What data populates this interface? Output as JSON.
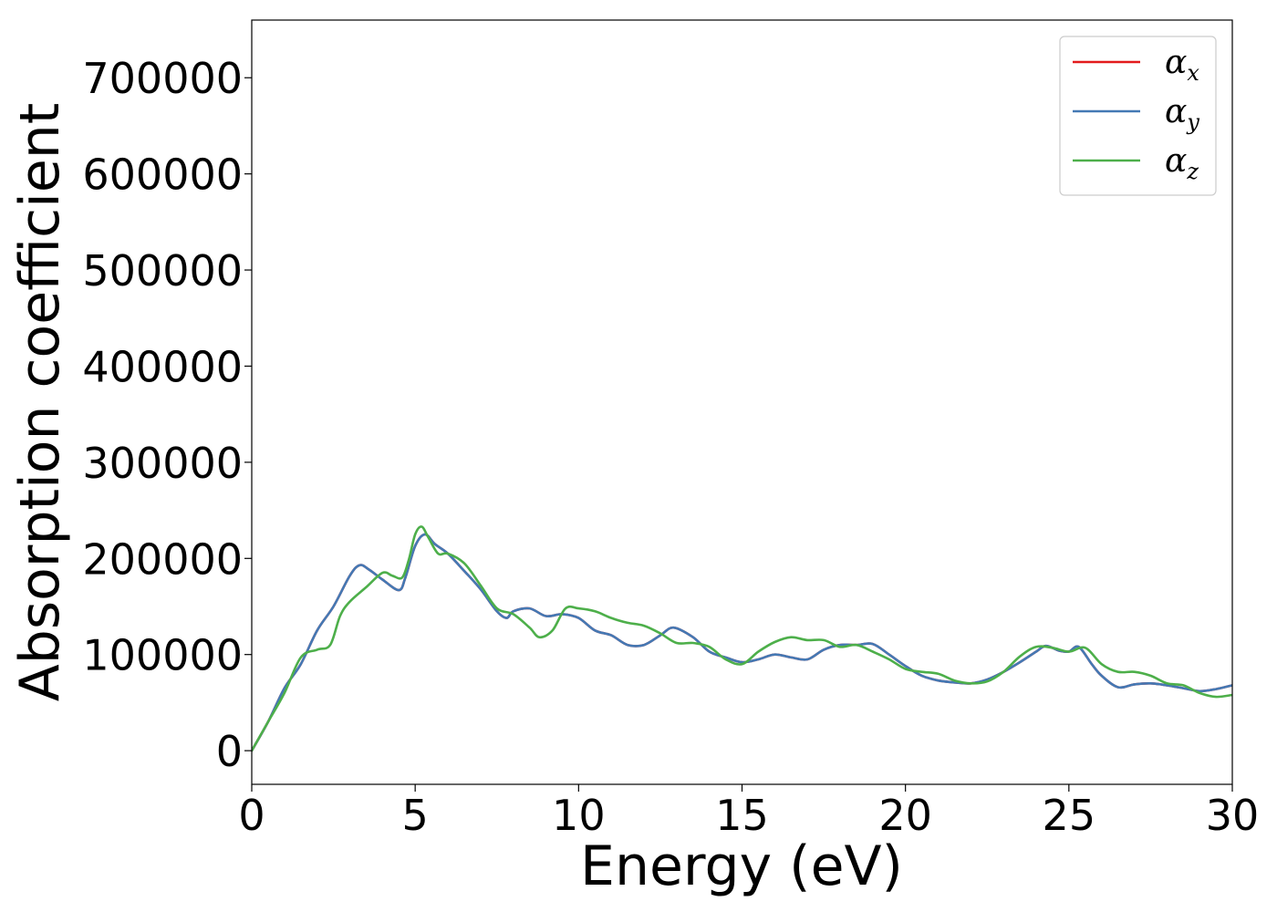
{
  "chart_data": {
    "type": "line",
    "xlabel": "Energy (eV)",
    "ylabel": "Absorption coefficient",
    "xlim": [
      0,
      30
    ],
    "ylim": [
      -35000,
      760000
    ],
    "xticks": [
      0,
      5,
      10,
      15,
      20,
      25,
      30
    ],
    "xtick_labels": [
      "0",
      "5",
      "10",
      "15",
      "20",
      "25",
      "30"
    ],
    "yticks": [
      0,
      100000,
      200000,
      300000,
      400000,
      500000,
      600000,
      700000
    ],
    "ytick_labels": [
      "0",
      "100000",
      "200000",
      "300000",
      "400000",
      "500000",
      "600000",
      "700000"
    ],
    "grid": false,
    "legend": {
      "position": "top-right",
      "entries": [
        {
          "symbol": "α",
          "subscript": "x"
        },
        {
          "symbol": "α",
          "subscript": "y"
        },
        {
          "symbol": "α",
          "subscript": "z"
        }
      ]
    },
    "series": [
      {
        "name": "α_x",
        "color": "#e31a1c",
        "x": [
          0,
          0.5,
          1.0,
          1.5,
          2.0,
          2.5,
          3.0,
          3.3,
          3.6,
          4.0,
          4.5,
          4.7,
          5.0,
          5.3,
          5.6,
          6.0,
          6.5,
          7.0,
          7.5,
          7.8,
          8.0,
          8.5,
          9.0,
          9.5,
          10.0,
          10.5,
          11.0,
          11.5,
          12.0,
          12.5,
          12.9,
          13.5,
          14.0,
          14.5,
          15.0,
          15.5,
          16.0,
          16.5,
          17.0,
          17.5,
          18.0,
          18.5,
          19.0,
          19.5,
          20.0,
          20.5,
          21.0,
          21.5,
          22.0,
          22.5,
          23.0,
          23.5,
          24.0,
          24.3,
          24.7,
          25.0,
          25.3,
          25.7,
          26.0,
          26.5,
          27.0,
          27.5,
          28.0,
          28.5,
          29.0,
          29.5,
          30.0
        ],
        "y": [
          0,
          30000,
          65000,
          90000,
          125000,
          150000,
          182000,
          193000,
          188000,
          178000,
          167000,
          180000,
          213000,
          225000,
          215000,
          205000,
          187000,
          168000,
          145000,
          138000,
          145000,
          148000,
          140000,
          142000,
          138000,
          125000,
          120000,
          110000,
          110000,
          120000,
          128000,
          118000,
          103000,
          97000,
          92000,
          95000,
          100000,
          97000,
          95000,
          105000,
          110000,
          110000,
          111000,
          100000,
          88000,
          78000,
          73000,
          71000,
          70000,
          74000,
          82000,
          92000,
          103000,
          109000,
          104000,
          103000,
          108000,
          90000,
          78000,
          66000,
          69000,
          70000,
          68000,
          65000,
          62000,
          64000,
          68000
        ]
      },
      {
        "name": "α_y",
        "color": "#4479b4",
        "x": [
          0,
          0.5,
          1.0,
          1.5,
          2.0,
          2.5,
          3.0,
          3.3,
          3.6,
          4.0,
          4.5,
          4.7,
          5.0,
          5.3,
          5.6,
          6.0,
          6.5,
          7.0,
          7.5,
          7.8,
          8.0,
          8.5,
          9.0,
          9.5,
          10.0,
          10.5,
          11.0,
          11.5,
          12.0,
          12.5,
          12.9,
          13.5,
          14.0,
          14.5,
          15.0,
          15.5,
          16.0,
          16.5,
          17.0,
          17.5,
          18.0,
          18.5,
          19.0,
          19.5,
          20.0,
          20.5,
          21.0,
          21.5,
          22.0,
          22.5,
          23.0,
          23.5,
          24.0,
          24.3,
          24.7,
          25.0,
          25.3,
          25.7,
          26.0,
          26.5,
          27.0,
          27.5,
          28.0,
          28.5,
          29.0,
          29.5,
          30.0
        ],
        "y": [
          0,
          30000,
          65000,
          90000,
          125000,
          150000,
          182000,
          193000,
          188000,
          178000,
          167000,
          180000,
          213000,
          225000,
          215000,
          205000,
          187000,
          168000,
          145000,
          138000,
          145000,
          148000,
          140000,
          142000,
          138000,
          125000,
          120000,
          110000,
          110000,
          120000,
          128000,
          118000,
          103000,
          97000,
          92000,
          95000,
          100000,
          97000,
          95000,
          105000,
          110000,
          110000,
          111000,
          100000,
          88000,
          78000,
          73000,
          71000,
          70000,
          74000,
          82000,
          92000,
          103000,
          109000,
          104000,
          103000,
          108000,
          90000,
          78000,
          66000,
          69000,
          70000,
          68000,
          65000,
          62000,
          64000,
          68000
        ]
      },
      {
        "name": "α_z",
        "color": "#4daf4a",
        "x": [
          0,
          0.5,
          1.0,
          1.5,
          2.0,
          2.4,
          2.7,
          3.0,
          3.5,
          4.0,
          4.3,
          4.6,
          4.8,
          5.0,
          5.2,
          5.4,
          5.7,
          6.0,
          6.5,
          7.0,
          7.5,
          8.0,
          8.5,
          8.8,
          9.2,
          9.6,
          10.0,
          10.5,
          11.0,
          11.5,
          12.0,
          12.5,
          13.0,
          13.5,
          14.0,
          14.5,
          15.0,
          15.5,
          16.0,
          16.5,
          17.0,
          17.5,
          18.0,
          18.5,
          19.0,
          19.5,
          20.0,
          20.5,
          21.0,
          21.5,
          22.0,
          22.5,
          23.0,
          23.5,
          24.0,
          24.5,
          25.0,
          25.5,
          26.0,
          26.5,
          27.0,
          27.5,
          28.0,
          28.5,
          29.0,
          29.5,
          30.0
        ],
        "y": [
          0,
          30000,
          60000,
          97000,
          105000,
          110000,
          140000,
          155000,
          170000,
          185000,
          182000,
          180000,
          198000,
          225000,
          233000,
          222000,
          205000,
          205000,
          195000,
          172000,
          148000,
          142000,
          128000,
          118000,
          125000,
          148000,
          148000,
          145000,
          138000,
          133000,
          130000,
          122000,
          112000,
          112000,
          108000,
          95000,
          90000,
          103000,
          113000,
          118000,
          115000,
          115000,
          108000,
          110000,
          103000,
          95000,
          85000,
          82000,
          80000,
          73000,
          70000,
          72000,
          82000,
          98000,
          108000,
          107000,
          103000,
          107000,
          90000,
          82000,
          82000,
          78000,
          70000,
          68000,
          60000,
          56000,
          58000
        ]
      }
    ]
  }
}
